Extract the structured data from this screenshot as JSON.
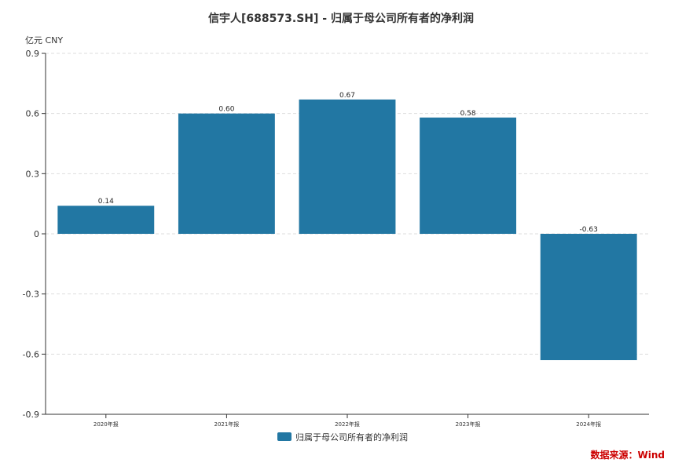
{
  "chart_data": {
    "type": "bar",
    "title": "信宇人[688573.SH] - 归属于母公司所有者的净利润",
    "unit_label": "亿元  CNY",
    "categories": [
      "2020年报",
      "2021年报",
      "2022年报",
      "2023年报",
      "2024年报"
    ],
    "series": [
      {
        "name": "归属于母公司所有者的净利润",
        "values": [
          0.14,
          0.6,
          0.67,
          0.58,
          -0.63
        ]
      }
    ],
    "data_labels": [
      "0.14",
      "0.60",
      "0.67",
      "0.58",
      "-0.63"
    ],
    "ylim": [
      -0.9,
      0.9
    ],
    "yticks": [
      "-0.9",
      "-0.6",
      "-0.3",
      "0",
      "0.3",
      "0.6",
      "0.9"
    ],
    "grid": true,
    "legend_position": "bottom-center",
    "bar_color": "#2277a3",
    "source": "数据来源：Wind"
  }
}
